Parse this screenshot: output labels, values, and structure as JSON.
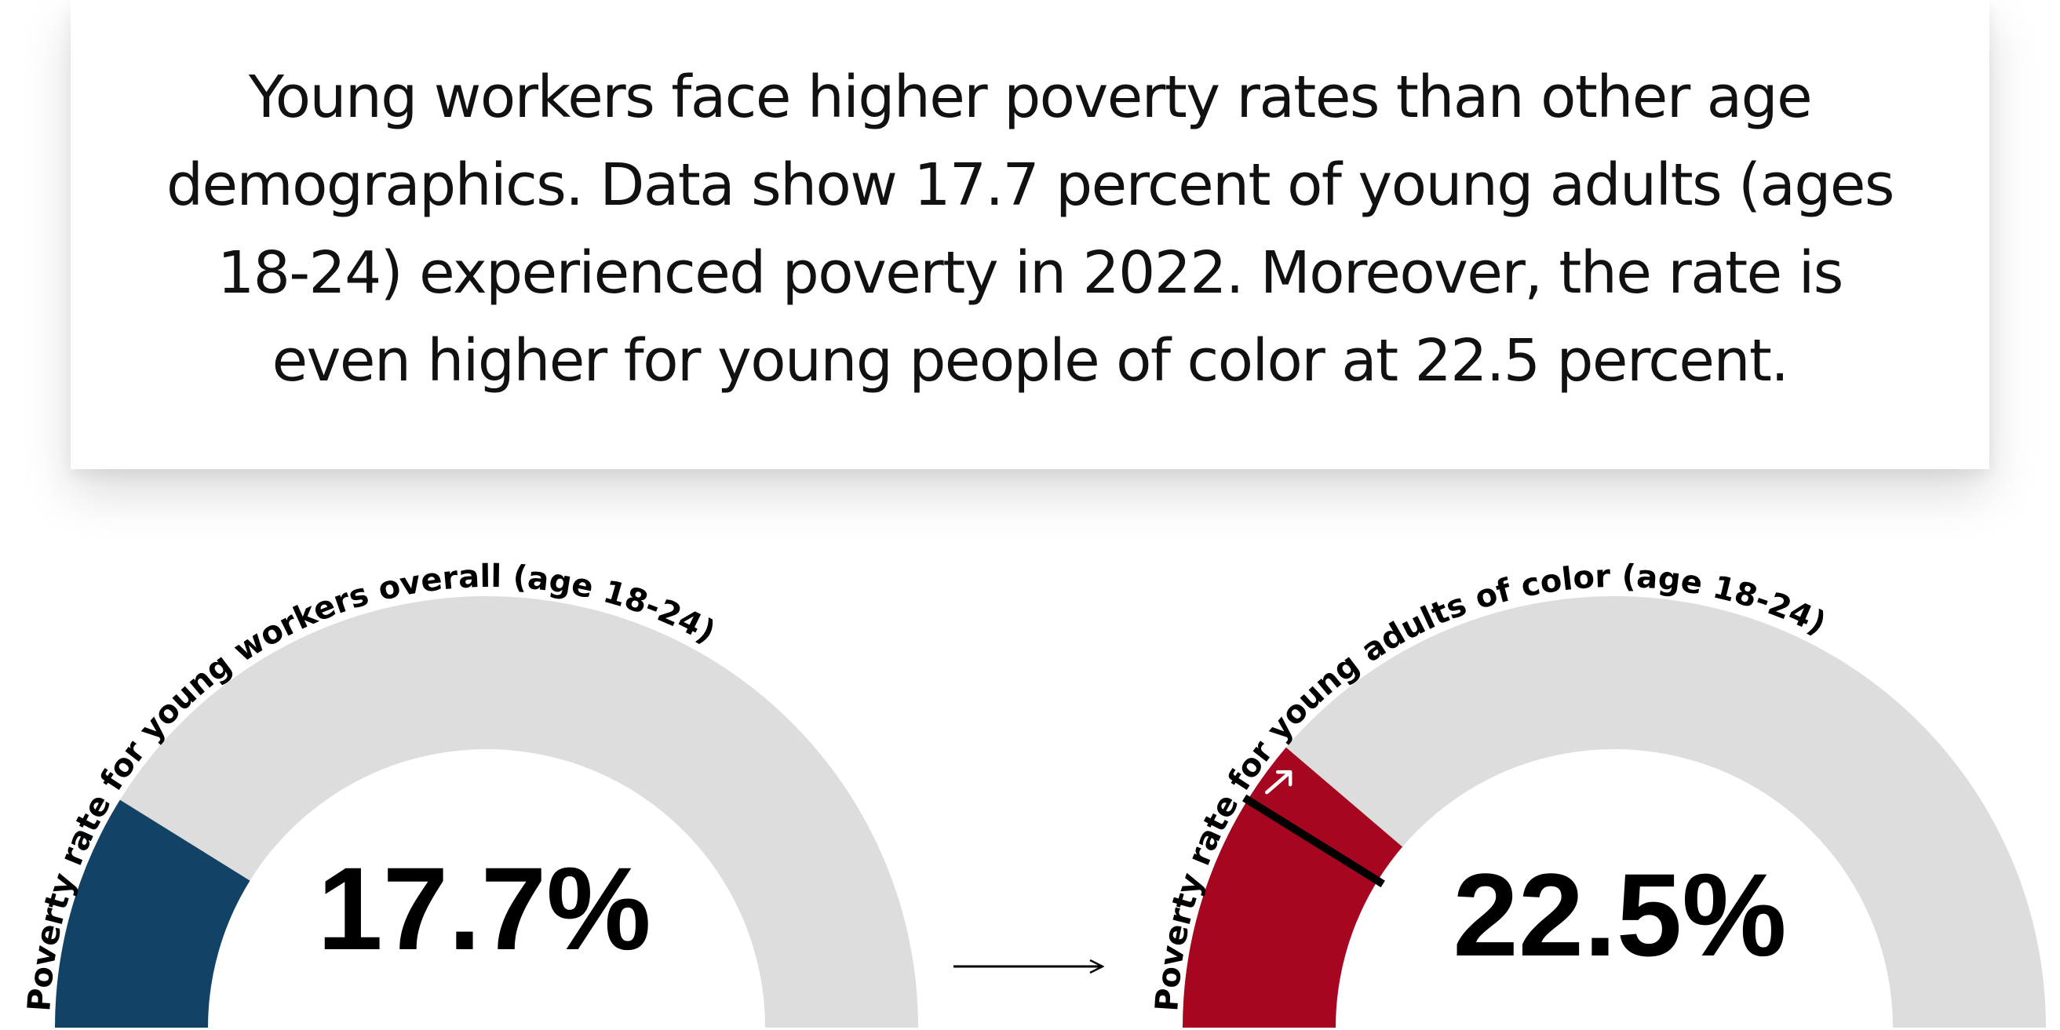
{
  "intro": {
    "text": "Young workers face higher poverty rates than other age demographics. Data show 17.7 percent of young adults (ages 18-24) experienced poverty in 2022. Moreover, the rate is even higher for young people of color at 22.5 percent."
  },
  "colors": {
    "track": "#dddddd",
    "overall_fill": "#124266",
    "color_fill": "#a6061f",
    "text": "#000000"
  },
  "chart_data": [
    {
      "type": "gauge",
      "title": "Poverty rate for young workers overall (age 18-24)",
      "value": 17.7,
      "unit": "%",
      "value_label": "17.7%",
      "range": [
        0,
        100
      ]
    },
    {
      "type": "gauge",
      "title": "Poverty rate for young adults of color  (age 18-24)",
      "value": 22.5,
      "unit": "%",
      "value_label": "22.5%",
      "range": [
        0,
        100
      ],
      "reference_value": 17.7
    }
  ]
}
